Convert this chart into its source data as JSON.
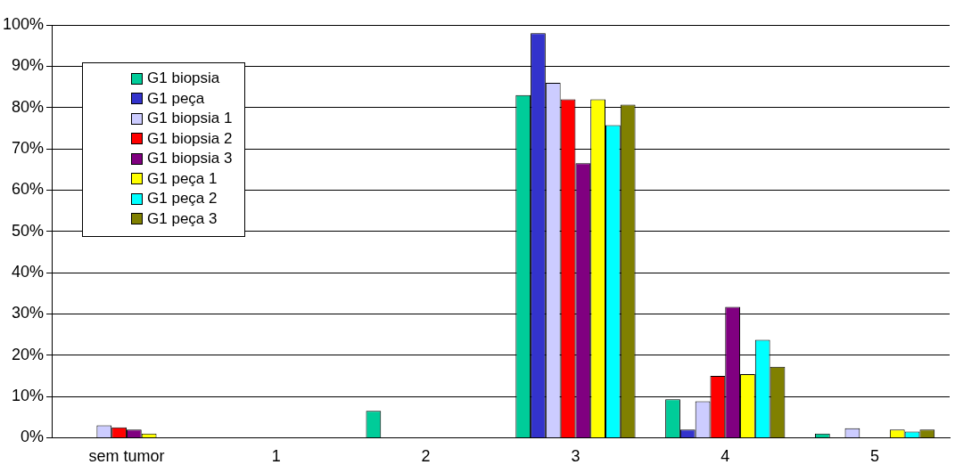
{
  "chart_data": {
    "type": "bar",
    "categories": [
      "sem tumor",
      "1",
      "2",
      "3",
      "4",
      "5"
    ],
    "series": [
      {
        "name": "G1 biopsia",
        "color": "#00cc99",
        "values": [
          0,
          0,
          6.5,
          83,
          9.3,
          1
        ]
      },
      {
        "name": "G1 peça",
        "color": "#3333cc",
        "values": [
          0,
          0,
          0,
          98,
          2,
          0
        ]
      },
      {
        "name": "G1 biopsia 1",
        "color": "#ccccff",
        "values": [
          3,
          0,
          0,
          86,
          8.8,
          2.3
        ]
      },
      {
        "name": "G1 biopsia 2",
        "color": "#ff0000",
        "values": [
          2.5,
          0,
          0,
          82,
          15,
          0
        ]
      },
      {
        "name": "G1 biopsia 3",
        "color": "#800080",
        "values": [
          2,
          0,
          0,
          66.5,
          31.7,
          0
        ]
      },
      {
        "name": "G1 peça 1",
        "color": "#ffff00",
        "values": [
          1,
          0,
          0,
          82,
          15.4,
          2
        ]
      },
      {
        "name": "G1 peça 2",
        "color": "#00ffff",
        "values": [
          0,
          0,
          0,
          75.7,
          23.7,
          1.5
        ]
      },
      {
        "name": "G1 peça 3",
        "color": "#808000",
        "values": [
          0,
          0,
          0,
          80.7,
          17.2,
          2
        ]
      }
    ],
    "ylim": [
      0,
      100
    ],
    "yticks": [
      {
        "value": 0,
        "label": "0%"
      },
      {
        "value": 10,
        "label": "10%"
      },
      {
        "value": 20,
        "label": "20%"
      },
      {
        "value": 30,
        "label": "30%"
      },
      {
        "value": 40,
        "label": "40%"
      },
      {
        "value": 50,
        "label": "50%"
      },
      {
        "value": 60,
        "label": "60%"
      },
      {
        "value": 70,
        "label": "70%"
      },
      {
        "value": 80,
        "label": "80%"
      },
      {
        "value": 90,
        "label": "90%"
      },
      {
        "value": 100,
        "label": "100%"
      }
    ],
    "grid": "y",
    "legend": "top left"
  }
}
